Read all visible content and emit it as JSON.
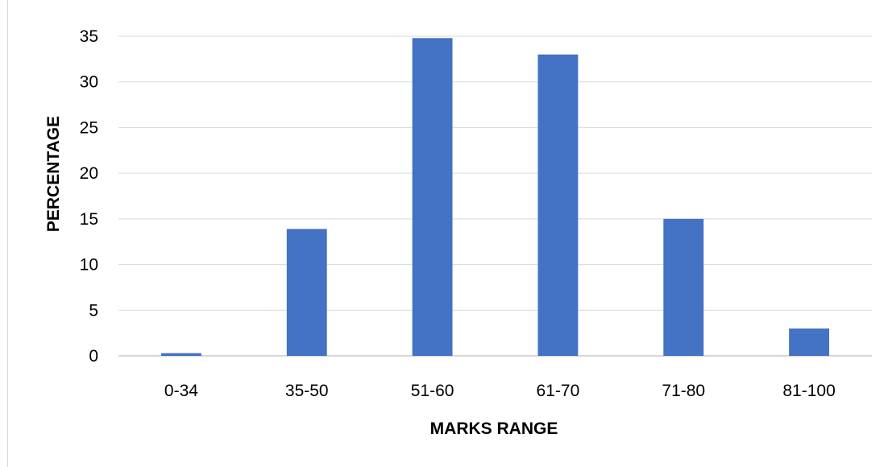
{
  "chart_data": {
    "type": "bar",
    "categories": [
      "0-34",
      "35-50",
      "51-60",
      "61-70",
      "71-80",
      "81-100"
    ],
    "values": [
      0.3,
      13.9,
      34.8,
      33.0,
      15.0,
      3.0
    ],
    "xlabel": "MARKS RANGE",
    "ylabel": "PERCENTAGE",
    "ylim": [
      0,
      35
    ],
    "yticks": [
      0,
      5,
      10,
      15,
      20,
      25,
      30,
      35
    ],
    "grid": true,
    "legend": "none",
    "bar_color": "#4472C4"
  }
}
